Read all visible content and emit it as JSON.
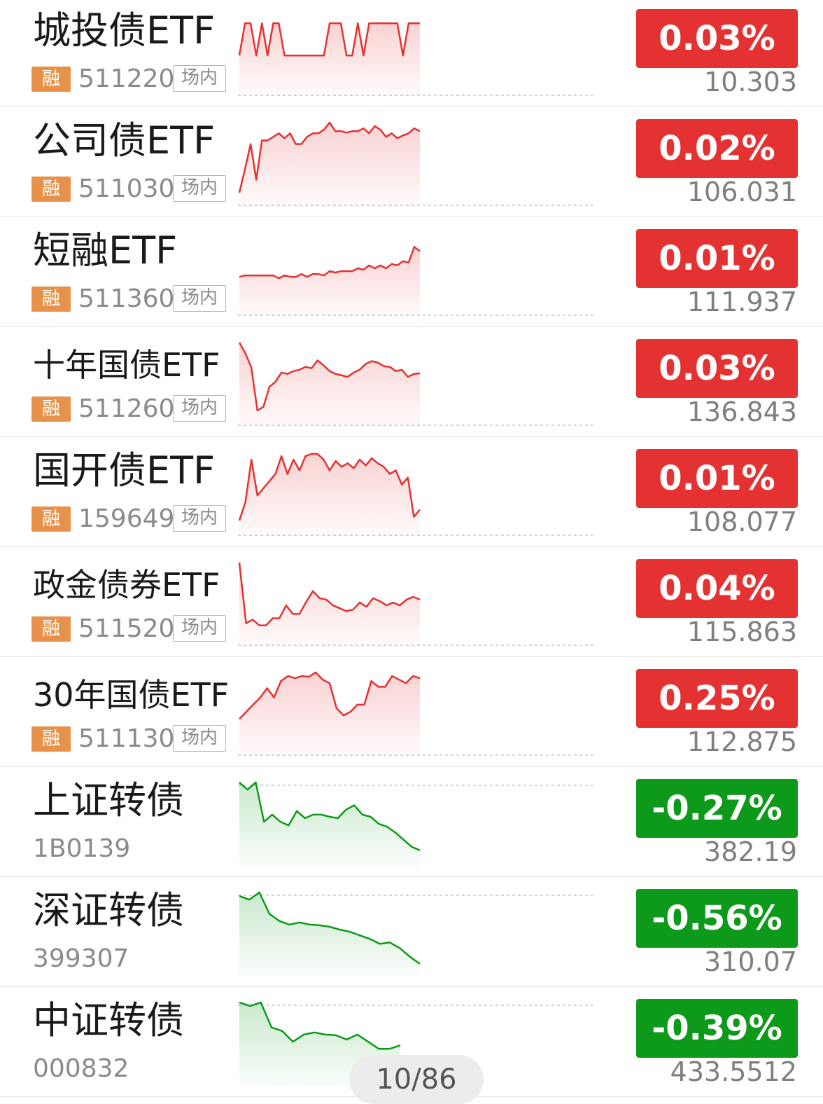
{
  "rows": [
    {
      "name": "城投债ETF",
      "code": "511220",
      "margin_badge": "融",
      "market_badge": "场内",
      "change": "0.03%",
      "price": "10.303",
      "direction": "up",
      "spark": [
        0.6,
        0.15,
        0.15,
        0.6,
        0.15,
        0.6,
        0.15,
        0.15,
        0.6,
        0.6,
        0.6,
        0.6,
        0.6,
        0.6,
        0.6,
        0.6,
        0.15,
        0.15,
        0.15,
        0.6,
        0.6,
        0.15,
        0.6,
        0.15,
        0.15,
        0.15,
        0.15,
        0.15,
        0.15,
        0.6,
        0.15,
        0.15,
        0.15
      ]
    },
    {
      "name": "公司债ETF",
      "code": "511030",
      "margin_badge": "融",
      "market_badge": "场内",
      "change": "0.02%",
      "price": "106.031",
      "direction": "up",
      "spark": [
        0.98,
        0.65,
        0.3,
        0.8,
        0.25,
        0.25,
        0.2,
        0.15,
        0.22,
        0.15,
        0.3,
        0.3,
        0.2,
        0.15,
        0.15,
        0.1,
        0.0,
        0.12,
        0.12,
        0.14,
        0.12,
        0.12,
        0.08,
        0.15,
        0.05,
        0.1,
        0.2,
        0.15,
        0.22,
        0.18,
        0.15,
        0.08,
        0.12
      ]
    },
    {
      "name": "短融ETF",
      "code": "511360",
      "margin_badge": "融",
      "market_badge": "场内",
      "change": "0.01%",
      "price": "111.937",
      "direction": "up",
      "spark": [
        0.62,
        0.6,
        0.6,
        0.6,
        0.6,
        0.6,
        0.6,
        0.64,
        0.6,
        0.62,
        0.62,
        0.58,
        0.62,
        0.58,
        0.58,
        0.6,
        0.54,
        0.56,
        0.54,
        0.54,
        0.54,
        0.5,
        0.52,
        0.46,
        0.5,
        0.46,
        0.5,
        0.44,
        0.46,
        0.4,
        0.42,
        0.2,
        0.26
      ]
    },
    {
      "name": "十年国债ETF",
      "code": "511260",
      "margin_badge": "融",
      "market_badge": "场内",
      "change": "0.03%",
      "price": "136.843",
      "direction": "up",
      "small": true,
      "spark": [
        0.0,
        0.15,
        0.35,
        0.95,
        0.9,
        0.62,
        0.55,
        0.42,
        0.44,
        0.4,
        0.38,
        0.34,
        0.36,
        0.25,
        0.32,
        0.4,
        0.44,
        0.46,
        0.48,
        0.42,
        0.38,
        0.3,
        0.26,
        0.28,
        0.33,
        0.34,
        0.4,
        0.38,
        0.48,
        0.44,
        0.43
      ]
    },
    {
      "name": "国开债ETF",
      "code": "159649",
      "margin_badge": "融",
      "market_badge": "场内",
      "change": "0.01%",
      "price": "108.077",
      "direction": "up",
      "spark": [
        0.95,
        0.7,
        0.1,
        0.6,
        0.5,
        0.4,
        0.3,
        0.05,
        0.3,
        0.1,
        0.25,
        0.05,
        0.02,
        0.02,
        0.1,
        0.25,
        0.12,
        0.2,
        0.15,
        0.22,
        0.1,
        0.18,
        0.08,
        0.15,
        0.2,
        0.3,
        0.25,
        0.45,
        0.35,
        0.9,
        0.8
      ]
    },
    {
      "name": "政金债券ETF",
      "code": "511520",
      "margin_badge": "融",
      "market_badge": "场内",
      "change": "0.04%",
      "price": "115.863",
      "direction": "up",
      "small": true,
      "spark": [
        0.0,
        0.85,
        0.8,
        0.88,
        0.88,
        0.78,
        0.78,
        0.6,
        0.72,
        0.72,
        0.55,
        0.4,
        0.5,
        0.52,
        0.6,
        0.64,
        0.68,
        0.66,
        0.56,
        0.62,
        0.5,
        0.54,
        0.6,
        0.56,
        0.6,
        0.52,
        0.48,
        0.52
      ]
    },
    {
      "name": "30年国债ETF",
      "code": "511130",
      "margin_badge": "融",
      "market_badge": "场内",
      "change": "0.25%",
      "price": "112.875",
      "direction": "up",
      "small": true,
      "spark": [
        0.65,
        0.55,
        0.45,
        0.35,
        0.22,
        0.35,
        0.12,
        0.05,
        0.08,
        0.05,
        0.06,
        0.0,
        0.1,
        0.15,
        0.5,
        0.6,
        0.55,
        0.45,
        0.45,
        0.12,
        0.2,
        0.2,
        0.05,
        0.1,
        0.15,
        0.05,
        0.08
      ]
    },
    {
      "name": "上证转债",
      "code": "1B0139",
      "margin_badge": "",
      "market_badge": "",
      "change": "-0.27%",
      "price": "382.19",
      "direction": "down",
      "spark": [
        0.0,
        0.1,
        0.0,
        0.55,
        0.45,
        0.55,
        0.6,
        0.4,
        0.5,
        0.45,
        0.45,
        0.48,
        0.5,
        0.38,
        0.32,
        0.45,
        0.48,
        0.58,
        0.62,
        0.7,
        0.8,
        0.9,
        0.95
      ]
    },
    {
      "name": "深证转债",
      "code": "399307",
      "margin_badge": "",
      "market_badge": "",
      "change": "-0.56%",
      "price": "310.07",
      "direction": "down",
      "spark": [
        0.05,
        0.1,
        0.0,
        0.3,
        0.4,
        0.45,
        0.42,
        0.45,
        0.46,
        0.48,
        0.52,
        0.55,
        0.6,
        0.65,
        0.72,
        0.7,
        0.78,
        0.9,
        1.0
      ]
    },
    {
      "name": "中证转债",
      "code": "000832",
      "margin_badge": "",
      "market_badge": "",
      "change": "-0.39%",
      "price": "433.5512",
      "direction": "down",
      "partial": true,
      "spark": [
        0.0,
        0.05,
        0.0,
        0.35,
        0.4,
        0.55,
        0.45,
        0.42,
        0.45,
        0.46,
        0.52,
        0.45,
        0.55,
        0.65,
        0.65,
        0.6
      ]
    }
  ],
  "pager": "10/86",
  "colors": {
    "up": "#e43232",
    "down": "#0d9a1a"
  }
}
